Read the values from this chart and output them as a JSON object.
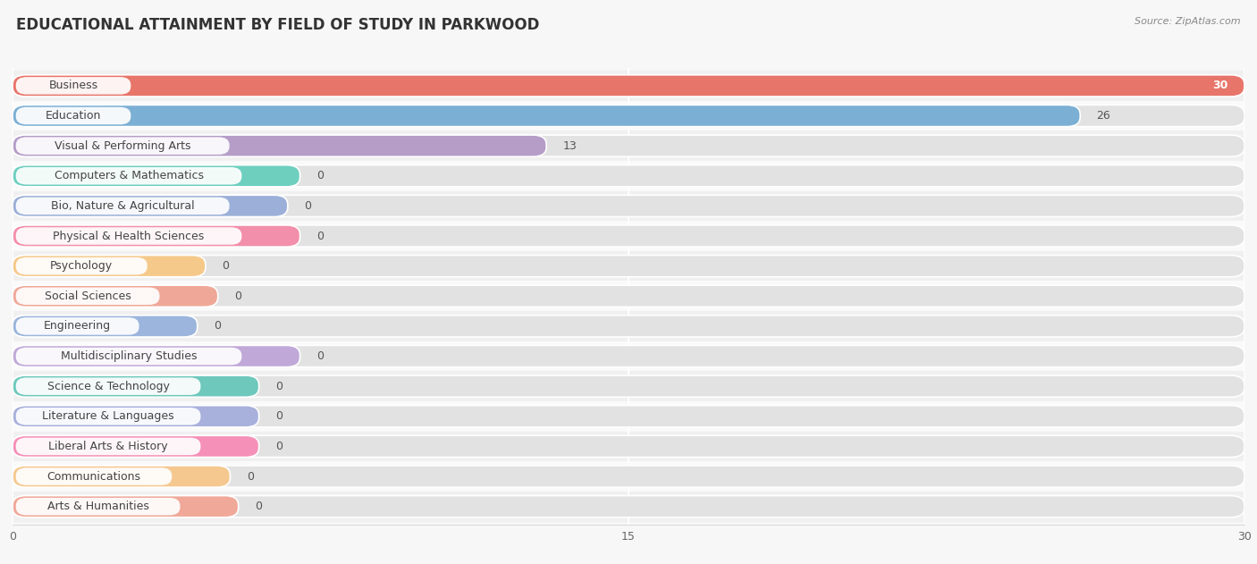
{
  "title": "EDUCATIONAL ATTAINMENT BY FIELD OF STUDY IN PARKWOOD",
  "source": "Source: ZipAtlas.com",
  "categories": [
    "Business",
    "Education",
    "Visual & Performing Arts",
    "Computers & Mathematics",
    "Bio, Nature & Agricultural",
    "Physical & Health Sciences",
    "Psychology",
    "Social Sciences",
    "Engineering",
    "Multidisciplinary Studies",
    "Science & Technology",
    "Literature & Languages",
    "Liberal Arts & History",
    "Communications",
    "Arts & Humanities"
  ],
  "values": [
    30,
    26,
    13,
    0,
    0,
    0,
    0,
    0,
    0,
    0,
    0,
    0,
    0,
    0,
    0
  ],
  "bar_colors": [
    "#E8756A",
    "#7BAFD4",
    "#B59DC8",
    "#6ECFBF",
    "#9BAFD8",
    "#F28FAA",
    "#F5C98A",
    "#EFA898",
    "#9BB5DC",
    "#C0A8D8",
    "#6EC8BC",
    "#A8B0DC",
    "#F590B8",
    "#F5C890",
    "#F0A898"
  ],
  "xlim": [
    0,
    30
  ],
  "xticks": [
    0,
    15,
    30
  ],
  "background_color": "#f7f7f7",
  "bar_bg_color": "#e8e8e8",
  "row_bg_even": "#f0f0f0",
  "row_bg_odd": "#fafafa",
  "title_fontsize": 12,
  "label_fontsize": 9,
  "value_fontsize": 9
}
